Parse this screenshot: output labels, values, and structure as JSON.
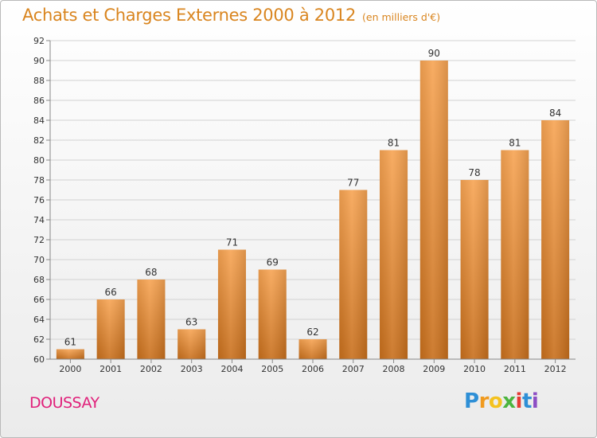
{
  "header": {
    "title": "Achats et Charges Externes 2000 à 2012",
    "unit": "(en milliers d'€)"
  },
  "footer": {
    "commune": "DOUSSAY",
    "logo": {
      "letters": [
        "P",
        "r",
        "o",
        "x",
        "i",
        "t",
        "i"
      ],
      "text": "Proxiti"
    }
  },
  "colors": {
    "accent": "#d9851f",
    "commune": "#e0207a",
    "bar_light": "#f7a453",
    "bar_dark": "#c86f1c"
  },
  "chart_data": {
    "type": "bar",
    "title": "Achats et Charges Externes 2000 à 2012",
    "subtitle": "(en milliers d'€)",
    "categories": [
      "2000",
      "2001",
      "2002",
      "2003",
      "2004",
      "2005",
      "2006",
      "2007",
      "2008",
      "2009",
      "2010",
      "2011",
      "2012"
    ],
    "values": [
      61,
      66,
      68,
      63,
      71,
      69,
      62,
      77,
      81,
      90,
      78,
      81,
      84
    ],
    "ylim": [
      60,
      92
    ],
    "yticks": [
      60,
      62,
      64,
      66,
      68,
      70,
      72,
      74,
      76,
      78,
      80,
      82,
      84,
      86,
      88,
      90,
      92
    ],
    "grid": true,
    "legend": "none"
  }
}
